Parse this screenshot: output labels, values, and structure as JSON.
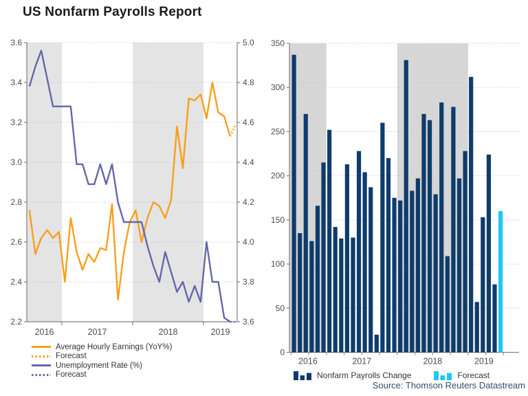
{
  "page": {
    "title": "US Nonfarm Payrolls Report",
    "source": "Source: Thomson Reuters Datastream"
  },
  "colors": {
    "earnings_line": "#F7A01A",
    "unemployment_line": "#6467A7",
    "payrolls_bar": "#0E3C6B",
    "forecast_bar": "#1EC8F4",
    "band_left_chart": "#E4E4E4",
    "band_right_chart": "#D6D6D6",
    "grid": "#C9C9C9",
    "axis": "#808080",
    "tick_text": "#4D4D4D",
    "legend_text": "#333333",
    "source_text": "#2E4D6E",
    "title_text": "#1A1A1A"
  },
  "left_chart": {
    "y_axis_left": {
      "tick_labels": [
        "3.6",
        "3.4",
        "3.2",
        "3.0",
        "2.8",
        "2.6",
        "2.4",
        "2.2"
      ],
      "range": [
        2.2,
        3.6
      ]
    },
    "y_axis_right": {
      "tick_labels": [
        "5.0",
        "4.8",
        "4.6",
        "4.4",
        "4.2",
        "4.0",
        "3.8",
        "3.6"
      ],
      "range": [
        3.6,
        5.0
      ]
    },
    "x_labels": [
      "2016",
      "2017",
      "2018",
      "2019"
    ],
    "legend": [
      {
        "label": "Average Hourly Earnings (YoY%)",
        "color_key": "earnings_line",
        "style": "solid"
      },
      {
        "label": "Forecast",
        "color_key": "earnings_line",
        "style": "dotted"
      },
      {
        "label": "Unemployment Rate (%)",
        "color_key": "unemployment_line",
        "style": "solid"
      },
      {
        "label": "Forecast",
        "color_key": "unemployment_line",
        "style": "dotted"
      }
    ]
  },
  "right_chart": {
    "y_axis": {
      "tick_labels": [
        "350",
        "300",
        "250",
        "200",
        "150",
        "100",
        "50",
        "0"
      ],
      "range": [
        0,
        350
      ]
    },
    "x_labels": [
      "2016",
      "2017",
      "2018",
      "2019"
    ],
    "legend": [
      {
        "label": "Nonfarm Payrolls Change",
        "color_key": "payrolls_bar"
      },
      {
        "label": "Forecast",
        "color_key": "forecast_bar"
      }
    ]
  },
  "chart_data": [
    {
      "type": "line",
      "title": "US Nonfarm Payrolls Report (left panel)",
      "x_monthly_start": "2016-07",
      "x_year_ticks": [
        "2016",
        "2017",
        "2018",
        "2019"
      ],
      "shaded_year_bands": [
        "2016",
        "2018"
      ],
      "left_ylim": [
        2.2,
        3.6
      ],
      "right_ylim": [
        3.6,
        5.0
      ],
      "series": [
        {
          "name": "Average Hourly Earnings (YoY%)",
          "axis": "left",
          "values": [
            2.76,
            2.54,
            2.62,
            2.66,
            2.62,
            2.65,
            2.4,
            2.72,
            2.55,
            2.46,
            2.54,
            2.5,
            2.57,
            2.56,
            2.79,
            2.31,
            2.55,
            2.7,
            2.76,
            2.6,
            2.72,
            2.8,
            2.78,
            2.72,
            2.81,
            3.18,
            2.97,
            3.32,
            3.31,
            3.34,
            3.22,
            3.4,
            3.25,
            3.23,
            3.13
          ],
          "forecast_value": 3.19
        },
        {
          "name": "Unemployment Rate (%)",
          "axis": "right",
          "values": [
            4.78,
            4.88,
            4.96,
            4.82,
            4.68,
            4.68,
            4.68,
            4.68,
            4.39,
            4.39,
            4.29,
            4.29,
            4.39,
            4.29,
            4.39,
            4.2,
            4.1,
            4.1,
            4.1,
            4.1,
            3.98,
            3.88,
            3.8,
            3.95,
            3.85,
            3.75,
            3.8,
            3.7,
            3.78,
            3.7,
            4.0,
            3.8,
            3.8,
            3.62,
            3.6
          ],
          "forecast_value": 3.6
        }
      ]
    },
    {
      "type": "bar",
      "title": "US Nonfarm Payrolls Report (right panel)",
      "name": "Nonfarm Payrolls Change",
      "x_monthly_start": "2016-07",
      "x_year_ticks": [
        "2016",
        "2017",
        "2018",
        "2019"
      ],
      "shaded_year_bands": [
        "2016",
        "2018"
      ],
      "ylim": [
        0,
        350
      ],
      "values": [
        337,
        135,
        270,
        126,
        166,
        215,
        252,
        142,
        129,
        213,
        130,
        228,
        204,
        187,
        20,
        260,
        220,
        175,
        172,
        331,
        183,
        197,
        270,
        263,
        179,
        283,
        109,
        278,
        197,
        228,
        312,
        57,
        153,
        224,
        77
      ],
      "forecast_value": 160
    }
  ]
}
